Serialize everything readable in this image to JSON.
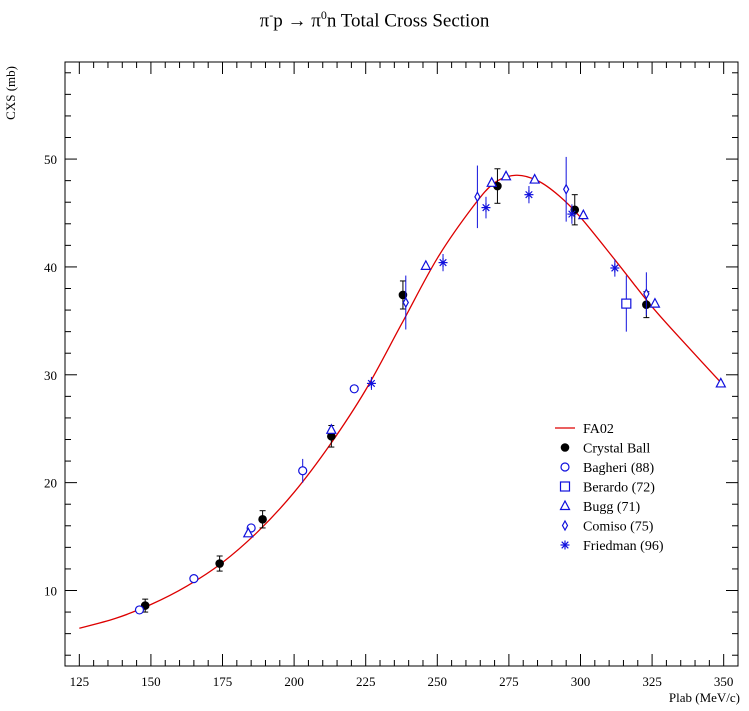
{
  "chart_data": {
    "type": "scatter",
    "title": {
      "pre": "π",
      "sup1": "-",
      "mid": "p → π",
      "sup2": "0",
      "post": "n  Total Cross Section"
    },
    "xlabel": "Plab (MeV/c)",
    "ylabel": "CXS (mb)",
    "xlim": [
      120,
      355
    ],
    "ylim": [
      3,
      59
    ],
    "xticks": [
      125,
      150,
      175,
      200,
      225,
      250,
      275,
      300,
      325,
      350
    ],
    "yticks": [
      10,
      20,
      30,
      40,
      50
    ],
    "grid": false,
    "legend_position": "bottom-right",
    "colors": {
      "line": "#dd0000",
      "crystal_ball": "#000000",
      "other_series": "#1010dd"
    },
    "series": [
      {
        "name": "FA02",
        "kind": "line",
        "points": [
          [
            125,
            6.5
          ],
          [
            137.5,
            7.4
          ],
          [
            150,
            8.7
          ],
          [
            162.5,
            10.4
          ],
          [
            175,
            12.6
          ],
          [
            187.5,
            15.5
          ],
          [
            200,
            19.1
          ],
          [
            212.5,
            23.5
          ],
          [
            225,
            28.6
          ],
          [
            237.5,
            34.7
          ],
          [
            250,
            40.8
          ],
          [
            262.5,
            45.6
          ],
          [
            270,
            47.8
          ],
          [
            277.5,
            48.5
          ],
          [
            285,
            48.0
          ],
          [
            292.5,
            46.6
          ],
          [
            300,
            44.6
          ],
          [
            312.5,
            40.5
          ],
          [
            325,
            36.3
          ],
          [
            337.5,
            32.6
          ],
          [
            350,
            29.0
          ]
        ]
      },
      {
        "name": "Crystal Ball",
        "marker": "filled-circle",
        "points": [
          {
            "x": 148,
            "y": 8.6,
            "err": 0.6
          },
          {
            "x": 174,
            "y": 12.5,
            "err": 0.7
          },
          {
            "x": 189,
            "y": 16.6,
            "err": 0.8
          },
          {
            "x": 213,
            "y": 24.3,
            "err": 1.0
          },
          {
            "x": 238,
            "y": 37.4,
            "err": 1.3
          },
          {
            "x": 271,
            "y": 47.5,
            "err": 1.6
          },
          {
            "x": 298,
            "y": 45.3,
            "err": 1.4
          },
          {
            "x": 323,
            "y": 36.5,
            "err": 1.2
          }
        ]
      },
      {
        "name": "Bagheri (88)",
        "marker": "open-circle",
        "points": [
          {
            "x": 146,
            "y": 8.2,
            "err": 0
          },
          {
            "x": 165,
            "y": 11.1,
            "err": 0
          },
          {
            "x": 185,
            "y": 15.8,
            "err": 0
          },
          {
            "x": 203,
            "y": 21.1,
            "err": 1.1
          },
          {
            "x": 221,
            "y": 28.7,
            "err": 0
          }
        ]
      },
      {
        "name": "Berardo (72)",
        "marker": "open-square",
        "points": [
          {
            "x": 316,
            "y": 36.6,
            "err": 2.6
          }
        ]
      },
      {
        "name": "Bugg (71)",
        "marker": "open-triangle",
        "points": [
          {
            "x": 184,
            "y": 15.3,
            "err": 0
          },
          {
            "x": 213,
            "y": 24.9,
            "err": 0
          },
          {
            "x": 246,
            "y": 40.1,
            "err": 0
          },
          {
            "x": 269,
            "y": 47.8,
            "err": 0
          },
          {
            "x": 274,
            "y": 48.4,
            "err": 0
          },
          {
            "x": 284,
            "y": 48.1,
            "err": 0
          },
          {
            "x": 301,
            "y": 44.8,
            "err": 0
          },
          {
            "x": 326,
            "y": 36.6,
            "err": 0
          },
          {
            "x": 349,
            "y": 29.2,
            "err": 0
          }
        ]
      },
      {
        "name": "Comiso (75)",
        "marker": "open-diamond",
        "points": [
          {
            "x": 239,
            "y": 36.7,
            "err": 2.5
          },
          {
            "x": 264,
            "y": 46.5,
            "err": 2.9
          },
          {
            "x": 295,
            "y": 47.2,
            "err": 3.0
          },
          {
            "x": 323,
            "y": 37.5,
            "err": 2.0
          }
        ]
      },
      {
        "name": "Friedman (96)",
        "marker": "star",
        "points": [
          {
            "x": 227,
            "y": 29.2,
            "err": 0.6
          },
          {
            "x": 252,
            "y": 40.4,
            "err": 0.8
          },
          {
            "x": 267,
            "y": 45.5,
            "err": 1.0
          },
          {
            "x": 282,
            "y": 46.7,
            "err": 0.8
          },
          {
            "x": 297,
            "y": 44.9,
            "err": 0.9
          },
          {
            "x": 312,
            "y": 39.9,
            "err": 0.8
          }
        ]
      }
    ]
  }
}
